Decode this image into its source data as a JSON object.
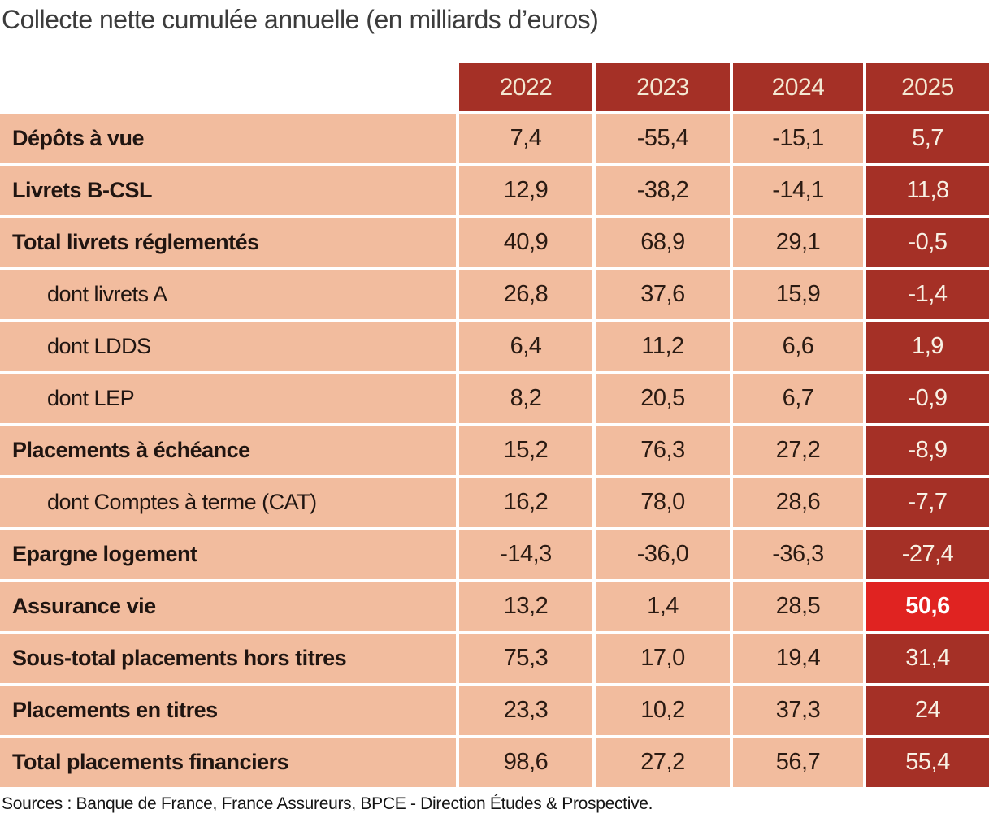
{
  "title": "Collecte nette cumulée annuelle (en milliards d’euros)",
  "source": "Sources : Banque de France, France Assureurs, BPCE - Direction Études & Prospective.",
  "colors": {
    "dark_red": "#A53026",
    "highlight_red": "#E02321",
    "salmon": "#F2BC9E",
    "header_text": "#F3E8D2",
    "red_cell_text": "#F8F1E4"
  },
  "chart_data": {
    "type": "table",
    "title": "Collecte nette cumulée annuelle (en milliards d’euros)",
    "columns": [
      "2022",
      "2023",
      "2024",
      "2025"
    ],
    "rows": [
      {
        "label": "Dépôts à vue",
        "bold": true,
        "indent": false,
        "values": [
          "7,4",
          "-55,4",
          "-15,1",
          "5,7"
        ],
        "highlight_2025": false
      },
      {
        "label": "Livrets B-CSL",
        "bold": true,
        "indent": false,
        "values": [
          "12,9",
          "-38,2",
          "-14,1",
          "11,8"
        ],
        "highlight_2025": false
      },
      {
        "label": "Total livrets réglementés",
        "bold": true,
        "indent": false,
        "values": [
          "40,9",
          "68,9",
          "29,1",
          "-0,5"
        ],
        "highlight_2025": false
      },
      {
        "label": "dont livrets A",
        "bold": false,
        "indent": true,
        "values": [
          "26,8",
          "37,6",
          "15,9",
          "-1,4"
        ],
        "highlight_2025": false
      },
      {
        "label": "dont LDDS",
        "bold": false,
        "indent": true,
        "values": [
          "6,4",
          "11,2",
          "6,6",
          "1,9"
        ],
        "highlight_2025": false
      },
      {
        "label": "dont LEP",
        "bold": false,
        "indent": true,
        "values": [
          "8,2",
          "20,5",
          "6,7",
          "-0,9"
        ],
        "highlight_2025": false
      },
      {
        "label": "Placements à échéance",
        "bold": true,
        "indent": false,
        "values": [
          "15,2",
          "76,3",
          "27,2",
          "-8,9"
        ],
        "highlight_2025": false
      },
      {
        "label": "dont Comptes à terme (CAT)",
        "bold": false,
        "indent": true,
        "values": [
          "16,2",
          "78,0",
          "28,6",
          "-7,7"
        ],
        "highlight_2025": false
      },
      {
        "label": "Epargne logement",
        "bold": true,
        "indent": false,
        "values": [
          "-14,3",
          "-36,0",
          "-36,3",
          "-27,4"
        ],
        "highlight_2025": false
      },
      {
        "label": "Assurance vie",
        "bold": true,
        "indent": false,
        "values": [
          "13,2",
          "1,4",
          "28,5",
          "50,6"
        ],
        "highlight_2025": true
      },
      {
        "label": "Sous-total placements hors titres",
        "bold": true,
        "indent": false,
        "values": [
          "75,3",
          "17,0",
          "19,4",
          "31,4"
        ],
        "highlight_2025": false
      },
      {
        "label": "Placements en titres",
        "bold": true,
        "indent": false,
        "values": [
          "23,3",
          "10,2",
          "37,3",
          "24"
        ],
        "highlight_2025": false
      },
      {
        "label": "Total placements financiers",
        "bold": true,
        "indent": false,
        "values": [
          "98,6",
          "27,2",
          "56,7",
          "55,4"
        ],
        "highlight_2025": false
      }
    ]
  }
}
